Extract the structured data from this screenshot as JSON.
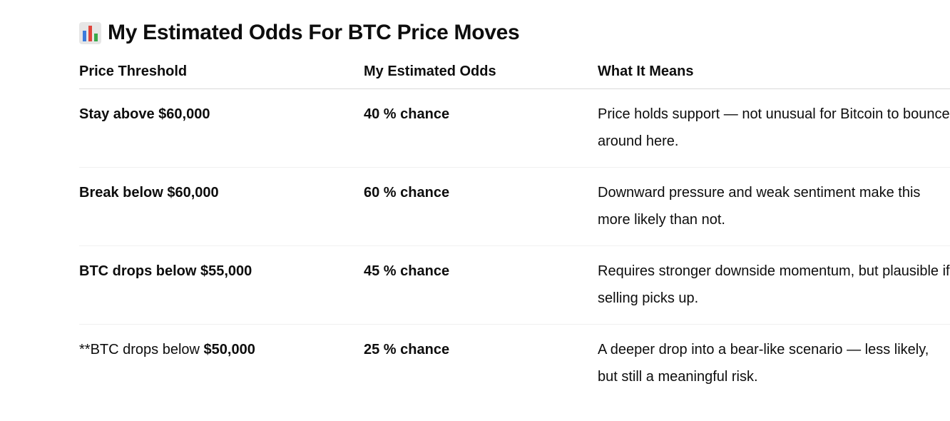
{
  "header": {
    "title": "My Estimated Odds For BTC Price Moves"
  },
  "table": {
    "columns": [
      "Price Threshold",
      "My Estimated Odds",
      "What It Means"
    ],
    "rows": [
      [
        "Stay above $60,000",
        "40 % chance",
        "Price holds support — not unusual for Bitcoin to bounce around here."
      ],
      [
        "Break below $60,000",
        "60 % chance",
        "Downward pressure and weak sentiment make this more likely than not."
      ],
      [
        "BTC drops below $55,000",
        "45 % chance",
        "Requires stronger downside momentum, but plausible if selling picks up."
      ],
      [
        [
          "**BTC drops below ",
          "$50,000"
        ],
        "25 % chance",
        "A deeper drop into a bear-like scenario — less likely, but still a meaningful risk."
      ]
    ]
  }
}
